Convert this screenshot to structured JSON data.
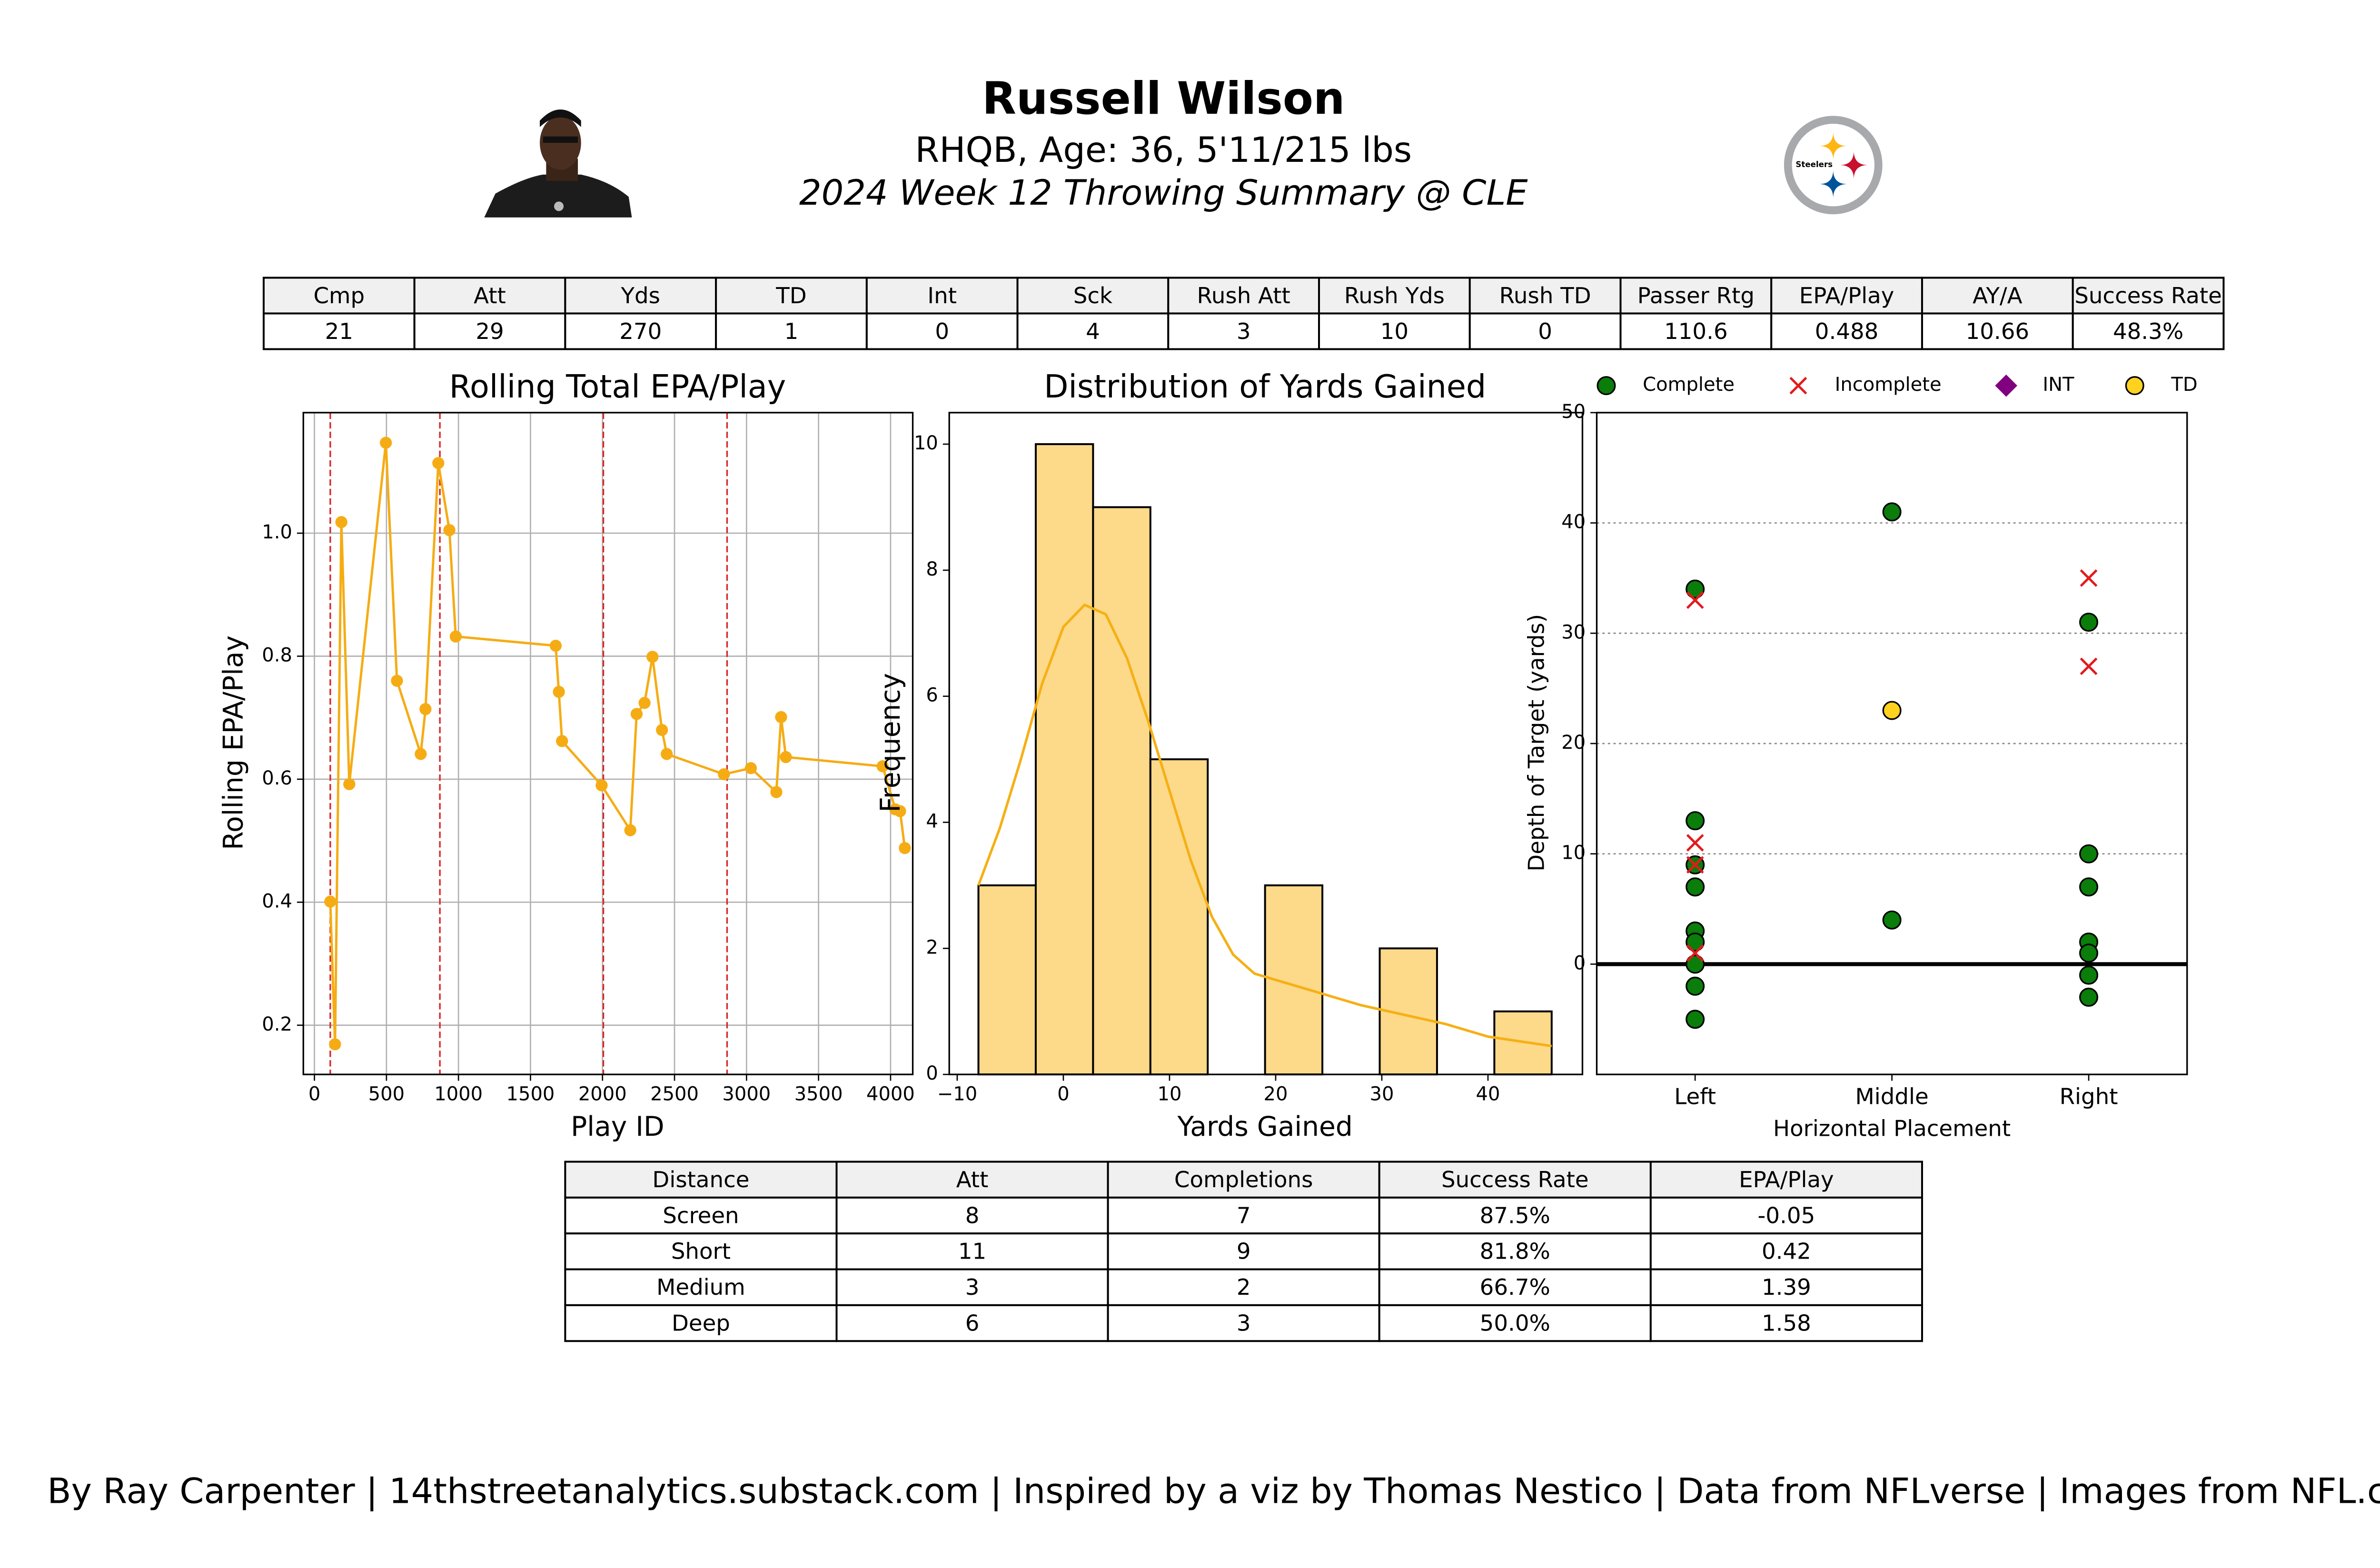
{
  "header": {
    "name": "Russell Wilson",
    "bio": "RHQB, Age: 36, 5'11/215 lbs",
    "title": "2024 Week 12 Throwing Summary @ CLE",
    "logo_text": "Steelers"
  },
  "stats_table": {
    "columns": [
      "Cmp",
      "Att",
      "Yds",
      "TD",
      "Int",
      "Sck",
      "Rush Att",
      "Rush Yds",
      "Rush TD",
      "Passer Rtg",
      "EPA/Play",
      "AY/A",
      "Success Rate"
    ],
    "rows": [
      [
        21,
        29,
        270,
        1,
        0,
        4,
        3,
        10,
        0,
        110.6,
        0.488,
        10.66,
        "48.3%"
      ]
    ]
  },
  "chart_data": [
    {
      "type": "line",
      "title": "Rolling Total EPA/Play",
      "x_label": "Play ID",
      "y_label": "Rolling EPA/Play",
      "color": "#f5ac14",
      "x": [
        110,
        143,
        187,
        242,
        496,
        573,
        738,
        771,
        860,
        937,
        981,
        1675,
        1697,
        1719,
        1994,
        2193,
        2237,
        2292,
        2347,
        2413,
        2446,
        2843,
        3030,
        3207,
        3240,
        3273,
        3945,
        4033,
        4066,
        4099
      ],
      "values": [
        0.401,
        0.169,
        1.018,
        0.592,
        1.147,
        0.76,
        0.641,
        0.714,
        1.114,
        1.005,
        0.832,
        0.817,
        0.742,
        0.662,
        0.59,
        0.517,
        0.706,
        0.724,
        0.799,
        0.68,
        0.641,
        0.608,
        0.618,
        0.579,
        0.701,
        0.636,
        0.621,
        0.551,
        0.548,
        0.488
      ],
      "vlines": {
        "x": [
          110,
          871,
          2006,
          2865
        ],
        "color": "#d62728"
      },
      "xlim": [
        -77,
        4154
      ],
      "ylim": [
        0.12,
        1.196
      ],
      "xticks": [
        0,
        500,
        1000,
        1500,
        2000,
        2500,
        3000,
        3500,
        4000
      ],
      "yticks": [
        0.2,
        0.4,
        0.6,
        0.8,
        {
          "value": 1,
          "label": "1.0"
        }
      ],
      "grid": "both"
    },
    {
      "type": "histogram",
      "title": "Distribution of Yards Gained",
      "x_label": "Yards Gained",
      "y_label": "Frequency",
      "color": "#fdd98a",
      "edgecolor": "#000000",
      "bins": [
        -8,
        -2.6,
        2.8,
        8.2,
        13.6,
        19,
        24.4,
        29.8,
        35.2,
        40.6,
        46
      ],
      "values": [
        3,
        10,
        9,
        5,
        0,
        3,
        0,
        2,
        0,
        1
      ],
      "kde": {
        "color": "#f5b014",
        "x": [
          -8,
          -6,
          -4,
          -2,
          0,
          2,
          4,
          6,
          8,
          10,
          12,
          14,
          16,
          18,
          20,
          24,
          28,
          32,
          36,
          40,
          46
        ],
        "values": [
          3.0,
          3.9,
          5.0,
          6.2,
          7.1,
          7.45,
          7.3,
          6.6,
          5.6,
          4.5,
          3.4,
          2.5,
          1.9,
          1.6,
          1.5,
          1.3,
          1.1,
          0.95,
          0.8,
          0.6,
          0.45
        ]
      },
      "xlim": [
        -10.75,
        48.9
      ],
      "ylim": [
        0,
        10.5
      ],
      "xticks": [
        {
          "value": -10,
          "label": "−10"
        },
        0,
        10,
        20,
        30,
        40
      ],
      "yticks": [
        0,
        2,
        4,
        6,
        8,
        10
      ]
    },
    {
      "type": "scatter",
      "x_label": "Horizontal Placement",
      "y_label": "Depth of Target (yards)",
      "categories": [
        "Left",
        "Middle",
        "Right"
      ],
      "series": [
        {
          "name": "Complete",
          "color": "#0a7d0a",
          "marker": "circle",
          "x": [
            "Left",
            "Left",
            "Left",
            "Left",
            "Left",
            "Left",
            "Left",
            "Left",
            "Left",
            "Middle",
            "Middle",
            "Right",
            "Right",
            "Right",
            "Right",
            "Right",
            "Right",
            "Right"
          ],
          "values": [
            34,
            13,
            9,
            7,
            3,
            2,
            0,
            -2,
            -5,
            41,
            4,
            31,
            10,
            7,
            2,
            1,
            -1,
            -3
          ]
        },
        {
          "name": "Incomplete",
          "color": "#e31a1c",
          "marker": "x",
          "x": [
            "Left",
            "Left",
            "Left",
            "Left",
            "Right",
            "Right"
          ],
          "values": [
            33,
            11,
            9,
            1,
            35,
            27
          ]
        },
        {
          "name": "INT",
          "color": "#800080",
          "marker": "diamond",
          "x": [],
          "values": []
        },
        {
          "name": "TD",
          "color": "#ffd21f",
          "marker": "circle",
          "x": [
            "Middle"
          ],
          "values": [
            23
          ]
        }
      ],
      "ylim": [
        -10,
        50
      ],
      "yticks": [
        0,
        10,
        20,
        30,
        40,
        50
      ],
      "grid": "y",
      "legend": "top"
    }
  ],
  "distance_table": {
    "columns": [
      "Distance",
      "Att",
      "Completions",
      "Success Rate",
      "EPA/Play"
    ],
    "rows": [
      [
        "Screen",
        8,
        7,
        "87.5%",
        -0.05
      ],
      [
        "Short",
        11,
        9,
        "81.8%",
        0.42
      ],
      [
        "Medium",
        3,
        2,
        "66.7%",
        1.39
      ],
      [
        "Deep",
        6,
        3,
        "50.0%",
        1.58
      ]
    ]
  },
  "footer": "By Ray Carpenter | 14thstreetanalytics.substack.com | Inspired by a viz by Thomas Nestico | Data from NFLverse | Images from NFL.com"
}
